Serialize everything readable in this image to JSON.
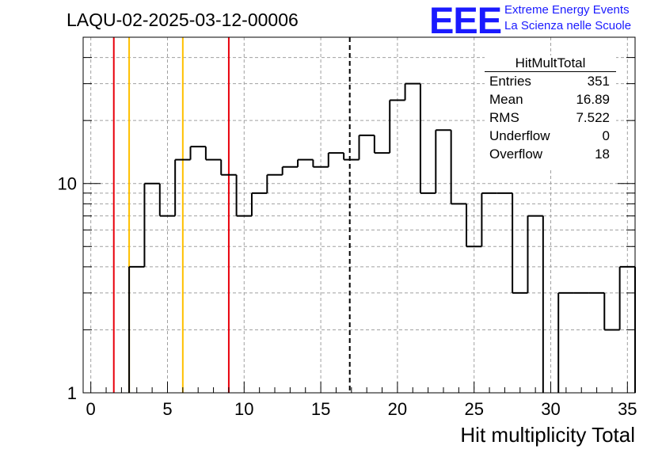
{
  "header": {
    "title": "LAQU-02-2025-03-12-00006",
    "logo_text": "EEE",
    "logo_line1": "Extreme Energy Events",
    "logo_line2": "La Scienza nelle Scuole"
  },
  "stats_box": {
    "title": "HitMultTotal",
    "rows": [
      {
        "key": "Entries",
        "value": "351"
      },
      {
        "key": "Mean",
        "value": "16.89"
      },
      {
        "key": "RMS",
        "value": "7.522"
      },
      {
        "key": "Underflow",
        "value": "0"
      },
      {
        "key": "Overflow",
        "value": "18"
      }
    ]
  },
  "colors": {
    "red_line": "#e8000b",
    "yellow_line": "#ffc000",
    "histogram": "#000000",
    "grid": "#a0a0a0"
  },
  "chart_data": {
    "type": "histogram",
    "title": "LAQU-02-2025-03-12-00006",
    "xlabel": "Hit multiplicity Total",
    "ylabel": "",
    "log_y": true,
    "xlim": [
      -0.5,
      35.5
    ],
    "ylim": [
      1,
      50
    ],
    "grid": true,
    "x_ticks": [
      0,
      5,
      10,
      15,
      20,
      25,
      30,
      35
    ],
    "x_tick_labels": [
      "0",
      "5",
      "10",
      "15",
      "20",
      "25",
      "30",
      "35"
    ],
    "y_ticks": [
      1,
      10
    ],
    "y_tick_labels": [
      "1",
      "10"
    ],
    "bin_edges": [
      -0.5,
      0.5,
      1.5,
      2.5,
      3.5,
      4.5,
      5.5,
      6.5,
      7.5,
      8.5,
      9.5,
      10.5,
      11.5,
      12.5,
      13.5,
      14.5,
      15.5,
      16.5,
      17.5,
      18.5,
      19.5,
      20.5,
      21.5,
      22.5,
      23.5,
      24.5,
      25.5,
      26.5,
      27.5,
      28.5,
      29.5,
      30.5,
      31.5,
      32.5,
      33.5,
      34.5,
      35.5
    ],
    "counts": [
      0,
      0,
      0,
      4,
      10,
      7,
      13,
      15,
      13,
      11,
      7,
      9,
      11,
      12,
      13,
      12,
      14,
      13,
      17,
      14,
      25,
      30,
      9,
      18,
      8,
      5,
      9,
      9,
      3,
      7,
      0,
      3,
      3,
      3,
      2,
      4
    ],
    "vertical_lines": [
      {
        "x": 1.5,
        "color": "red",
        "style": "solid"
      },
      {
        "x": 2.5,
        "color": "yellow",
        "style": "solid"
      },
      {
        "x": 6.0,
        "color": "yellow",
        "style": "solid"
      },
      {
        "x": 9.0,
        "color": "red",
        "style": "solid"
      },
      {
        "x": 16.89,
        "color": "black",
        "style": "dashed"
      }
    ]
  }
}
